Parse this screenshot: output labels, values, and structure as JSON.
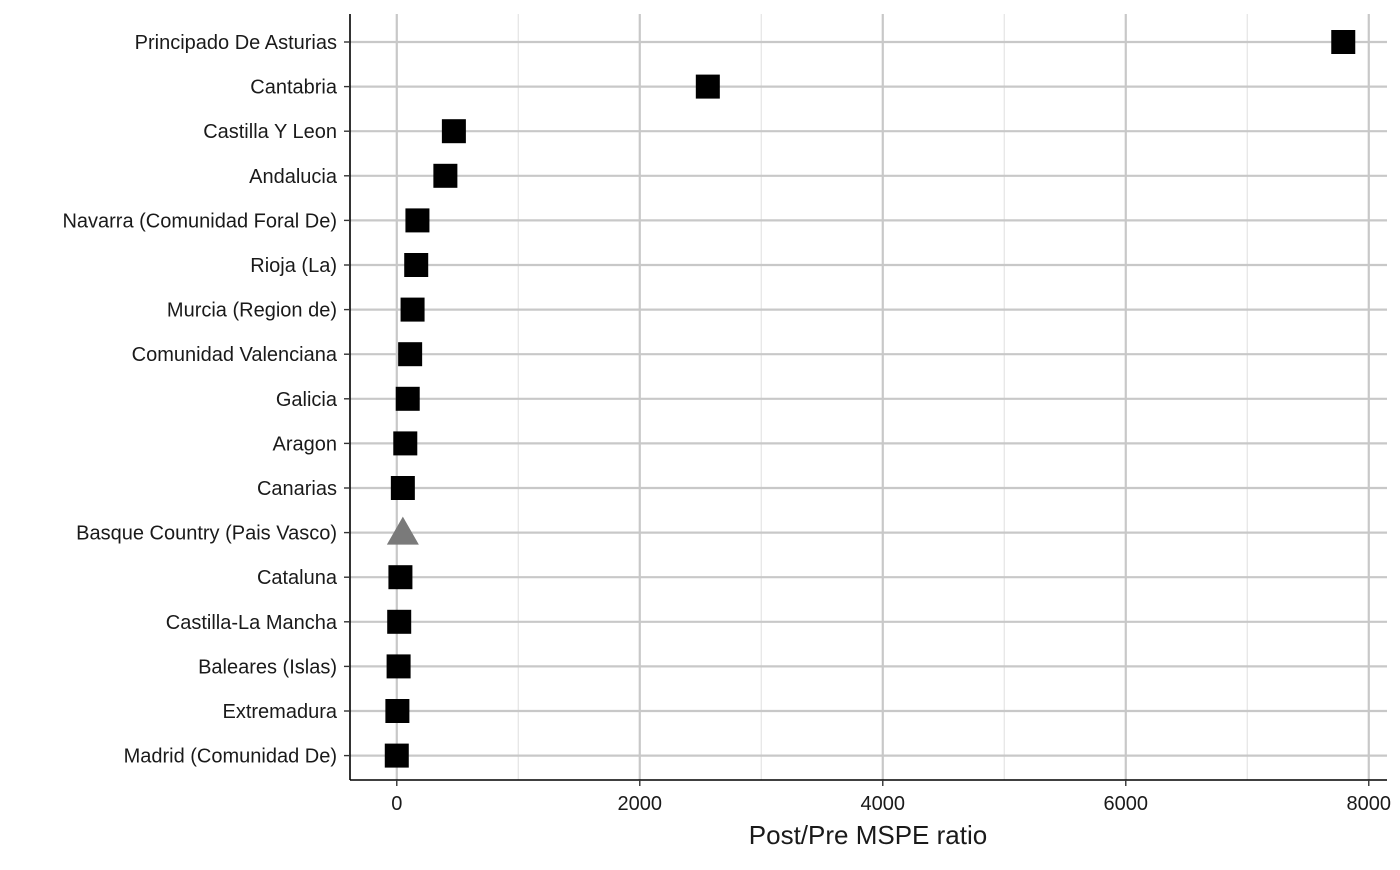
{
  "chart_data": {
    "type": "scatter",
    "xlabel": "Post/Pre MSPE ratio",
    "ylabel": "",
    "xlim": [
      -385,
      8150
    ],
    "x_ticks": [
      0,
      2000,
      4000,
      6000,
      8000
    ],
    "x_tick_labels": [
      "0",
      "2000",
      "4000",
      "6000",
      "8000"
    ],
    "grid": true,
    "categories": [
      "Principado De Asturias",
      "Cantabria",
      "Castilla Y Leon",
      "Andalucia",
      "Navarra (Comunidad Foral De)",
      "Rioja (La)",
      "Murcia (Region de)",
      "Comunidad Valenciana",
      "Galicia",
      "Aragon",
      "Canarias",
      "Basque Country (Pais Vasco)",
      "Cataluna",
      "Castilla-La Mancha",
      "Baleares (Islas)",
      "Extremadura",
      "Madrid (Comunidad De)"
    ],
    "values": [
      7790,
      2560,
      470,
      400,
      170,
      160,
      130,
      110,
      90,
      70,
      50,
      50,
      30,
      20,
      15,
      5,
      0
    ],
    "markers": [
      "square",
      "square",
      "square",
      "square",
      "square",
      "square",
      "square",
      "square",
      "square",
      "square",
      "square",
      "triangle",
      "square",
      "square",
      "square",
      "square",
      "square"
    ],
    "colors": {
      "point": "#000000",
      "highlight": "#7a7a7a",
      "grid_major": "#c8c8c8",
      "grid_minor": "#e4e4e4",
      "axis": "#000000"
    }
  }
}
